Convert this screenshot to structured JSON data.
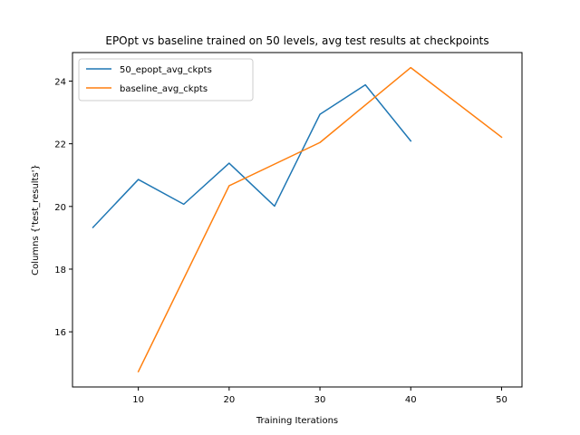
{
  "chart_data": {
    "type": "line",
    "title": "EPOpt vs baseline trained on 50 levels, avg test results at checkpoints",
    "xlabel": "Training Iterations",
    "ylabel": "Columns {'test_results'}",
    "xlim": [
      2.75,
      52.25
    ],
    "ylim": [
      14.24,
      24.91
    ],
    "xticks": [
      10,
      20,
      30,
      40,
      50
    ],
    "yticks": [
      16,
      18,
      20,
      22,
      24
    ],
    "legend_position": "upper-left",
    "grid": false,
    "series": [
      {
        "name": "50_epopt_avg_ckpts",
        "color": "#1f77b4",
        "x": [
          5,
          10,
          15,
          20,
          25,
          30,
          35,
          40
        ],
        "y": [
          19.33,
          20.86,
          20.07,
          21.38,
          20.01,
          22.94,
          23.88,
          22.09
        ]
      },
      {
        "name": "baseline_avg_ckpts",
        "color": "#ff7f0e",
        "x": [
          10,
          20,
          30,
          40,
          50
        ],
        "y": [
          14.73,
          20.66,
          22.04,
          24.43,
          22.21
        ]
      }
    ]
  }
}
